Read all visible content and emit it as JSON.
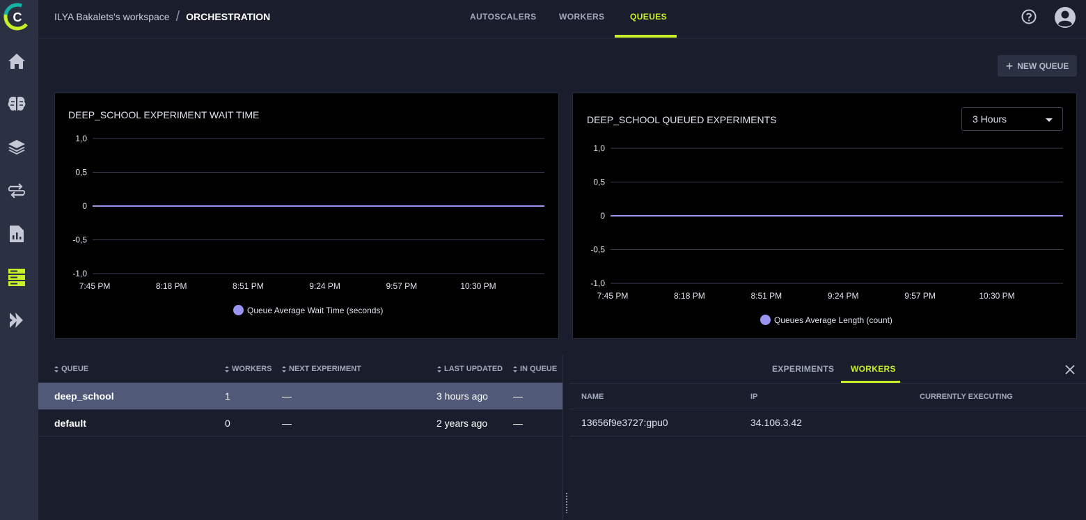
{
  "workspace": "ILYA Bakalets's workspace",
  "breadcrumb_sep": "/",
  "page_title": "ORCHESTRATION",
  "top_tabs": [
    {
      "label": "AUTOSCALERS",
      "active": false
    },
    {
      "label": "WORKERS",
      "active": false
    },
    {
      "label": "QUEUES",
      "active": true
    }
  ],
  "new_queue_label": "NEW QUEUE",
  "sidebar_icons": [
    "home-icon",
    "brain-icon",
    "layers-icon",
    "pipelines-icon",
    "reports-icon",
    "orchestration-icon",
    "applications-icon"
  ],
  "accent_color": "#c8f028",
  "series_color": "#9a95f2",
  "chart_data": [
    {
      "type": "line",
      "title": "DEEP_SCHOOL EXPERIMENT WAIT TIME",
      "x": [
        "7:45 PM",
        "8:18 PM",
        "8:51 PM",
        "9:24 PM",
        "9:57 PM",
        "10:30 PM"
      ],
      "y_ticks": [
        "1,0",
        "0,5",
        "0",
        "-0,5",
        "-1,0"
      ],
      "ylim": [
        -1,
        1
      ],
      "series": [
        {
          "name": "Queue Average Wait Time (seconds)",
          "values": [
            0,
            0,
            0,
            0,
            0,
            0
          ]
        }
      ],
      "legend": "bottom-center",
      "grid": true
    },
    {
      "type": "line",
      "title": "DEEP_SCHOOL QUEUED EXPERIMENTS",
      "x": [
        "7:45 PM",
        "8:18 PM",
        "8:51 PM",
        "9:24 PM",
        "9:57 PM",
        "10:30 PM"
      ],
      "y_ticks": [
        "1,0",
        "0,5",
        "0",
        "-0,5",
        "-1,0"
      ],
      "ylim": [
        -1,
        1
      ],
      "series": [
        {
          "name": "Queues Average Length (count)",
          "values": [
            0,
            0,
            0,
            0,
            0,
            0
          ]
        }
      ],
      "legend": "bottom-center",
      "grid": true
    }
  ],
  "time_range": "3 Hours",
  "queue_table": {
    "headers": [
      "QUEUE",
      "WORKERS",
      "NEXT EXPERIMENT",
      "LAST UPDATED",
      "IN QUEUE"
    ],
    "rows": [
      {
        "queue": "deep_school",
        "workers": "1",
        "next": "—",
        "updated": "3 hours ago",
        "in_queue": "—",
        "selected": true
      },
      {
        "queue": "default",
        "workers": "0",
        "next": "—",
        "updated": "2 years ago",
        "in_queue": "—",
        "selected": false
      }
    ]
  },
  "workers_panel": {
    "tabs": [
      {
        "label": "EXPERIMENTS",
        "active": false
      },
      {
        "label": "WORKERS",
        "active": true
      }
    ],
    "headers": [
      "NAME",
      "IP",
      "CURRENTLY EXECUTING"
    ],
    "rows": [
      {
        "name": "13656f9e3727:gpu0",
        "ip": "34.106.3.42",
        "executing": ""
      }
    ]
  }
}
